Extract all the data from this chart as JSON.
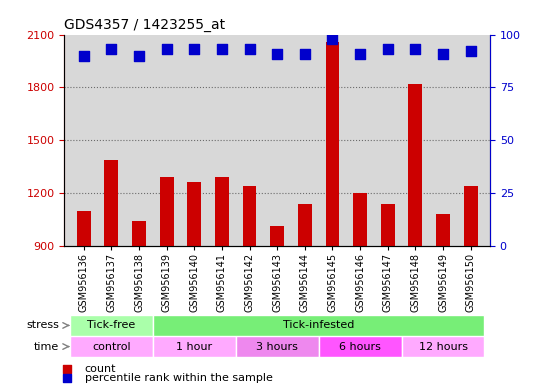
{
  "title": "GDS4357 / 1423255_at",
  "samples": [
    "GSM956136",
    "GSM956137",
    "GSM956138",
    "GSM956139",
    "GSM956140",
    "GSM956141",
    "GSM956142",
    "GSM956143",
    "GSM956144",
    "GSM956145",
    "GSM956146",
    "GSM956147",
    "GSM956148",
    "GSM956149",
    "GSM956150"
  ],
  "counts": [
    1100,
    1390,
    1040,
    1290,
    1260,
    1290,
    1240,
    1010,
    1140,
    2060,
    1200,
    1140,
    1820,
    1080,
    1240
  ],
  "percentile_ranks": [
    90,
    93,
    90,
    93,
    93,
    93,
    93,
    91,
    91,
    98,
    91,
    93,
    93,
    91,
    92
  ],
  "ylim_left": [
    900,
    2100
  ],
  "ylim_right": [
    0,
    100
  ],
  "yticks_left": [
    900,
    1200,
    1500,
    1800,
    2100
  ],
  "yticks_right": [
    0,
    25,
    50,
    75,
    100
  ],
  "bar_color": "#cc0000",
  "dot_color": "#0000cc",
  "plot_bg_color": "#d8d8d8",
  "stress_groups": [
    {
      "label": "Tick-free",
      "start": 0,
      "end": 3,
      "color": "#aaffaa"
    },
    {
      "label": "Tick-infested",
      "start": 3,
      "end": 15,
      "color": "#77ee77"
    }
  ],
  "time_groups": [
    {
      "label": "control",
      "start": 0,
      "end": 3,
      "color": "#ffaaff"
    },
    {
      "label": "1 hour",
      "start": 3,
      "end": 6,
      "color": "#ffaaff"
    },
    {
      "label": "3 hours",
      "start": 6,
      "end": 9,
      "color": "#ee88ee"
    },
    {
      "label": "6 hours",
      "start": 9,
      "end": 12,
      "color": "#ff55ff"
    },
    {
      "label": "12 hours",
      "start": 12,
      "end": 15,
      "color": "#ffaaff"
    }
  ],
  "bar_width": 0.5,
  "dot_size": 55,
  "count_base": 900,
  "gridline_yticks": [
    1200,
    1500,
    1800
  ],
  "tick_label_fontsize": 7,
  "row_label_fontsize": 8,
  "group_label_fontsize": 8
}
